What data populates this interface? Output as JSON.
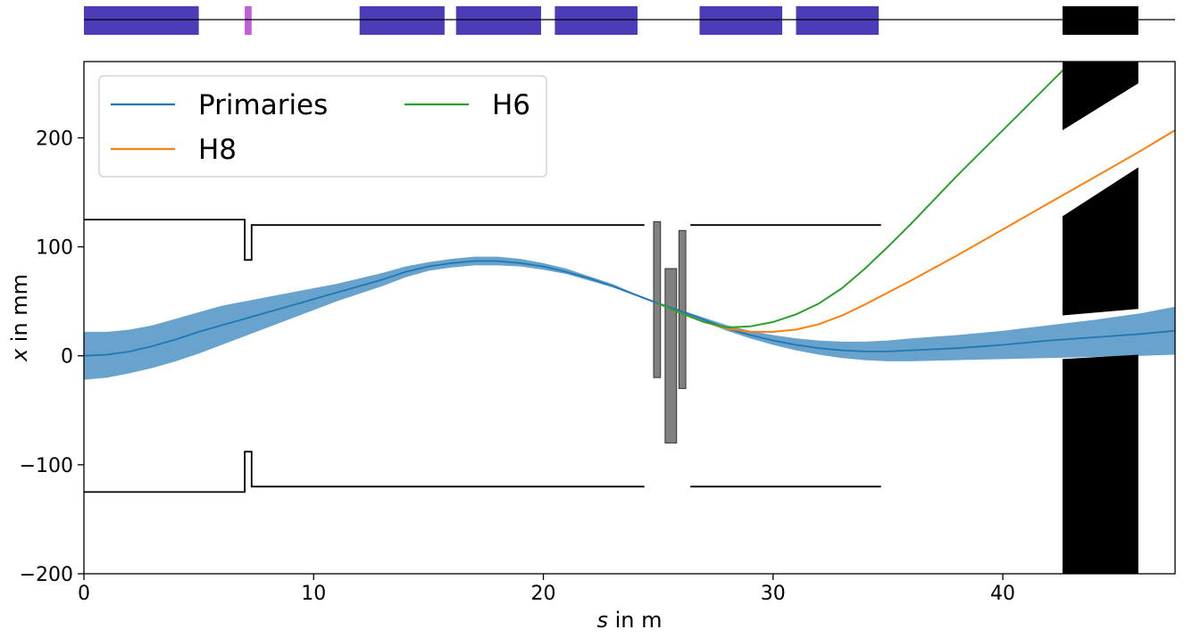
{
  "chart_data": {
    "type": "line",
    "title": "",
    "xlabel_var": "s",
    "xlabel_unit": " in m",
    "ylabel_var": "x",
    "ylabel_unit": " in mm",
    "xlim": [
      0,
      47.5
    ],
    "ylim": [
      -200,
      270
    ],
    "x_ticks": [
      0,
      10,
      20,
      30,
      40
    ],
    "y_ticks": [
      -200,
      -100,
      0,
      100,
      200
    ],
    "x_tick_labels": [
      "0",
      "10",
      "20",
      "30",
      "40"
    ],
    "y_tick_labels": [
      "−200",
      "−100",
      "0",
      "100",
      "200"
    ],
    "grid": false,
    "legend_position": "top-left",
    "series": [
      {
        "name": "Primaries",
        "color": "#1f77b4",
        "x": [
          0,
          1,
          2,
          3,
          4,
          5,
          6,
          7,
          8,
          9,
          10,
          11,
          12,
          13,
          14,
          15,
          16,
          17,
          18,
          19,
          20,
          21,
          22,
          23,
          24,
          25,
          26,
          27,
          28,
          29,
          30,
          31,
          32,
          33,
          34,
          35,
          36,
          38,
          40,
          42,
          44,
          46,
          47.5
        ],
        "y": [
          0,
          1,
          4,
          9,
          15,
          22,
          28,
          34,
          40,
          46,
          52,
          58,
          64,
          70,
          77,
          82,
          85,
          87,
          87,
          85,
          82,
          77,
          71,
          64,
          56,
          48,
          41,
          33,
          25,
          19,
          14,
          10,
          7,
          5,
          4,
          4,
          5,
          7,
          10,
          14,
          17,
          20,
          23
        ],
        "band_lower": [
          -22,
          -20,
          -16,
          -11,
          -5,
          2,
          10,
          18,
          26,
          34,
          42,
          50,
          57,
          64,
          72,
          78,
          81,
          83,
          83,
          82,
          79,
          75,
          69,
          63,
          56,
          48,
          40,
          31,
          23,
          16,
          10,
          5,
          1,
          -2,
          -4,
          -5,
          -5,
          -4,
          -3,
          -2,
          -1,
          0,
          1
        ],
        "band_upper": [
          22,
          22,
          24,
          28,
          34,
          40,
          46,
          50,
          54,
          58,
          62,
          66,
          71,
          76,
          82,
          86,
          89,
          91,
          91,
          89,
          85,
          80,
          73,
          66,
          57,
          49,
          42,
          35,
          28,
          23,
          19,
          16,
          14,
          13,
          13,
          14,
          16,
          19,
          23,
          28,
          33,
          39,
          45
        ]
      },
      {
        "name": "H8",
        "color": "#ff7f0e",
        "x": [
          25,
          26,
          27,
          28,
          29,
          30,
          31,
          32,
          33,
          34,
          35,
          36,
          38,
          40,
          42,
          44,
          46,
          47.5
        ],
        "y": [
          48,
          39,
          31,
          25,
          22,
          22,
          24,
          29,
          37,
          47,
          58,
          69,
          92,
          116,
          140,
          164,
          188,
          207
        ]
      },
      {
        "name": "H6",
        "color": "#2ca02c",
        "x": [
          25,
          26,
          27,
          28,
          29,
          30,
          31,
          32,
          33,
          34,
          35,
          36,
          37,
          38,
          39,
          40,
          41,
          42,
          43
        ],
        "y": [
          48,
          39,
          31,
          26,
          27,
          31,
          38,
          48,
          62,
          80,
          100,
          121,
          143,
          165,
          186,
          207,
          228,
          249,
          270
        ]
      }
    ],
    "aperture": {
      "color": "#000000",
      "upper": {
        "x": [
          0,
          7,
          7,
          7.3,
          7.3,
          24.4,
          null,
          26.4,
          34.7
        ],
        "y": [
          125,
          125,
          88,
          88,
          120,
          120,
          null,
          120,
          120
        ]
      },
      "lower": {
        "x": [
          0,
          7,
          7,
          7.3,
          7.3,
          24.4,
          null,
          26.4,
          34.7
        ],
        "y": [
          -125,
          -125,
          -88,
          -88,
          -120,
          -120,
          null,
          -120,
          -120
        ]
      }
    },
    "collimators": [
      {
        "x0": 24.8,
        "x1": 25.1,
        "y0": -20,
        "y1": 123,
        "color": "#808080"
      },
      {
        "x0": 25.3,
        "x1": 25.8,
        "y0": -80,
        "y1": 80,
        "color": "#808080"
      },
      {
        "x0": 25.9,
        "x1": 26.2,
        "y0": -30,
        "y1": 115,
        "color": "#808080"
      }
    ],
    "target": {
      "x0": 42.6,
      "x1": 45.9,
      "color": "#000000"
    },
    "lattice": {
      "elements": [
        {
          "x0": 0,
          "x1": 5.0,
          "color": "#4b3cb8"
        },
        {
          "x0": 7.0,
          "x1": 7.3,
          "color": "#c060d8"
        },
        {
          "x0": 12.0,
          "x1": 15.7,
          "color": "#4b3cb8"
        },
        {
          "x0": 16.2,
          "x1": 19.9,
          "color": "#4b3cb8"
        },
        {
          "x0": 20.5,
          "x1": 24.1,
          "color": "#4b3cb8"
        },
        {
          "x0": 26.8,
          "x1": 30.4,
          "color": "#4b3cb8"
        },
        {
          "x0": 31.0,
          "x1": 34.6,
          "color": "#4b3cb8"
        },
        {
          "x0": 42.6,
          "x1": 45.9,
          "color": "#000000"
        }
      ]
    }
  }
}
